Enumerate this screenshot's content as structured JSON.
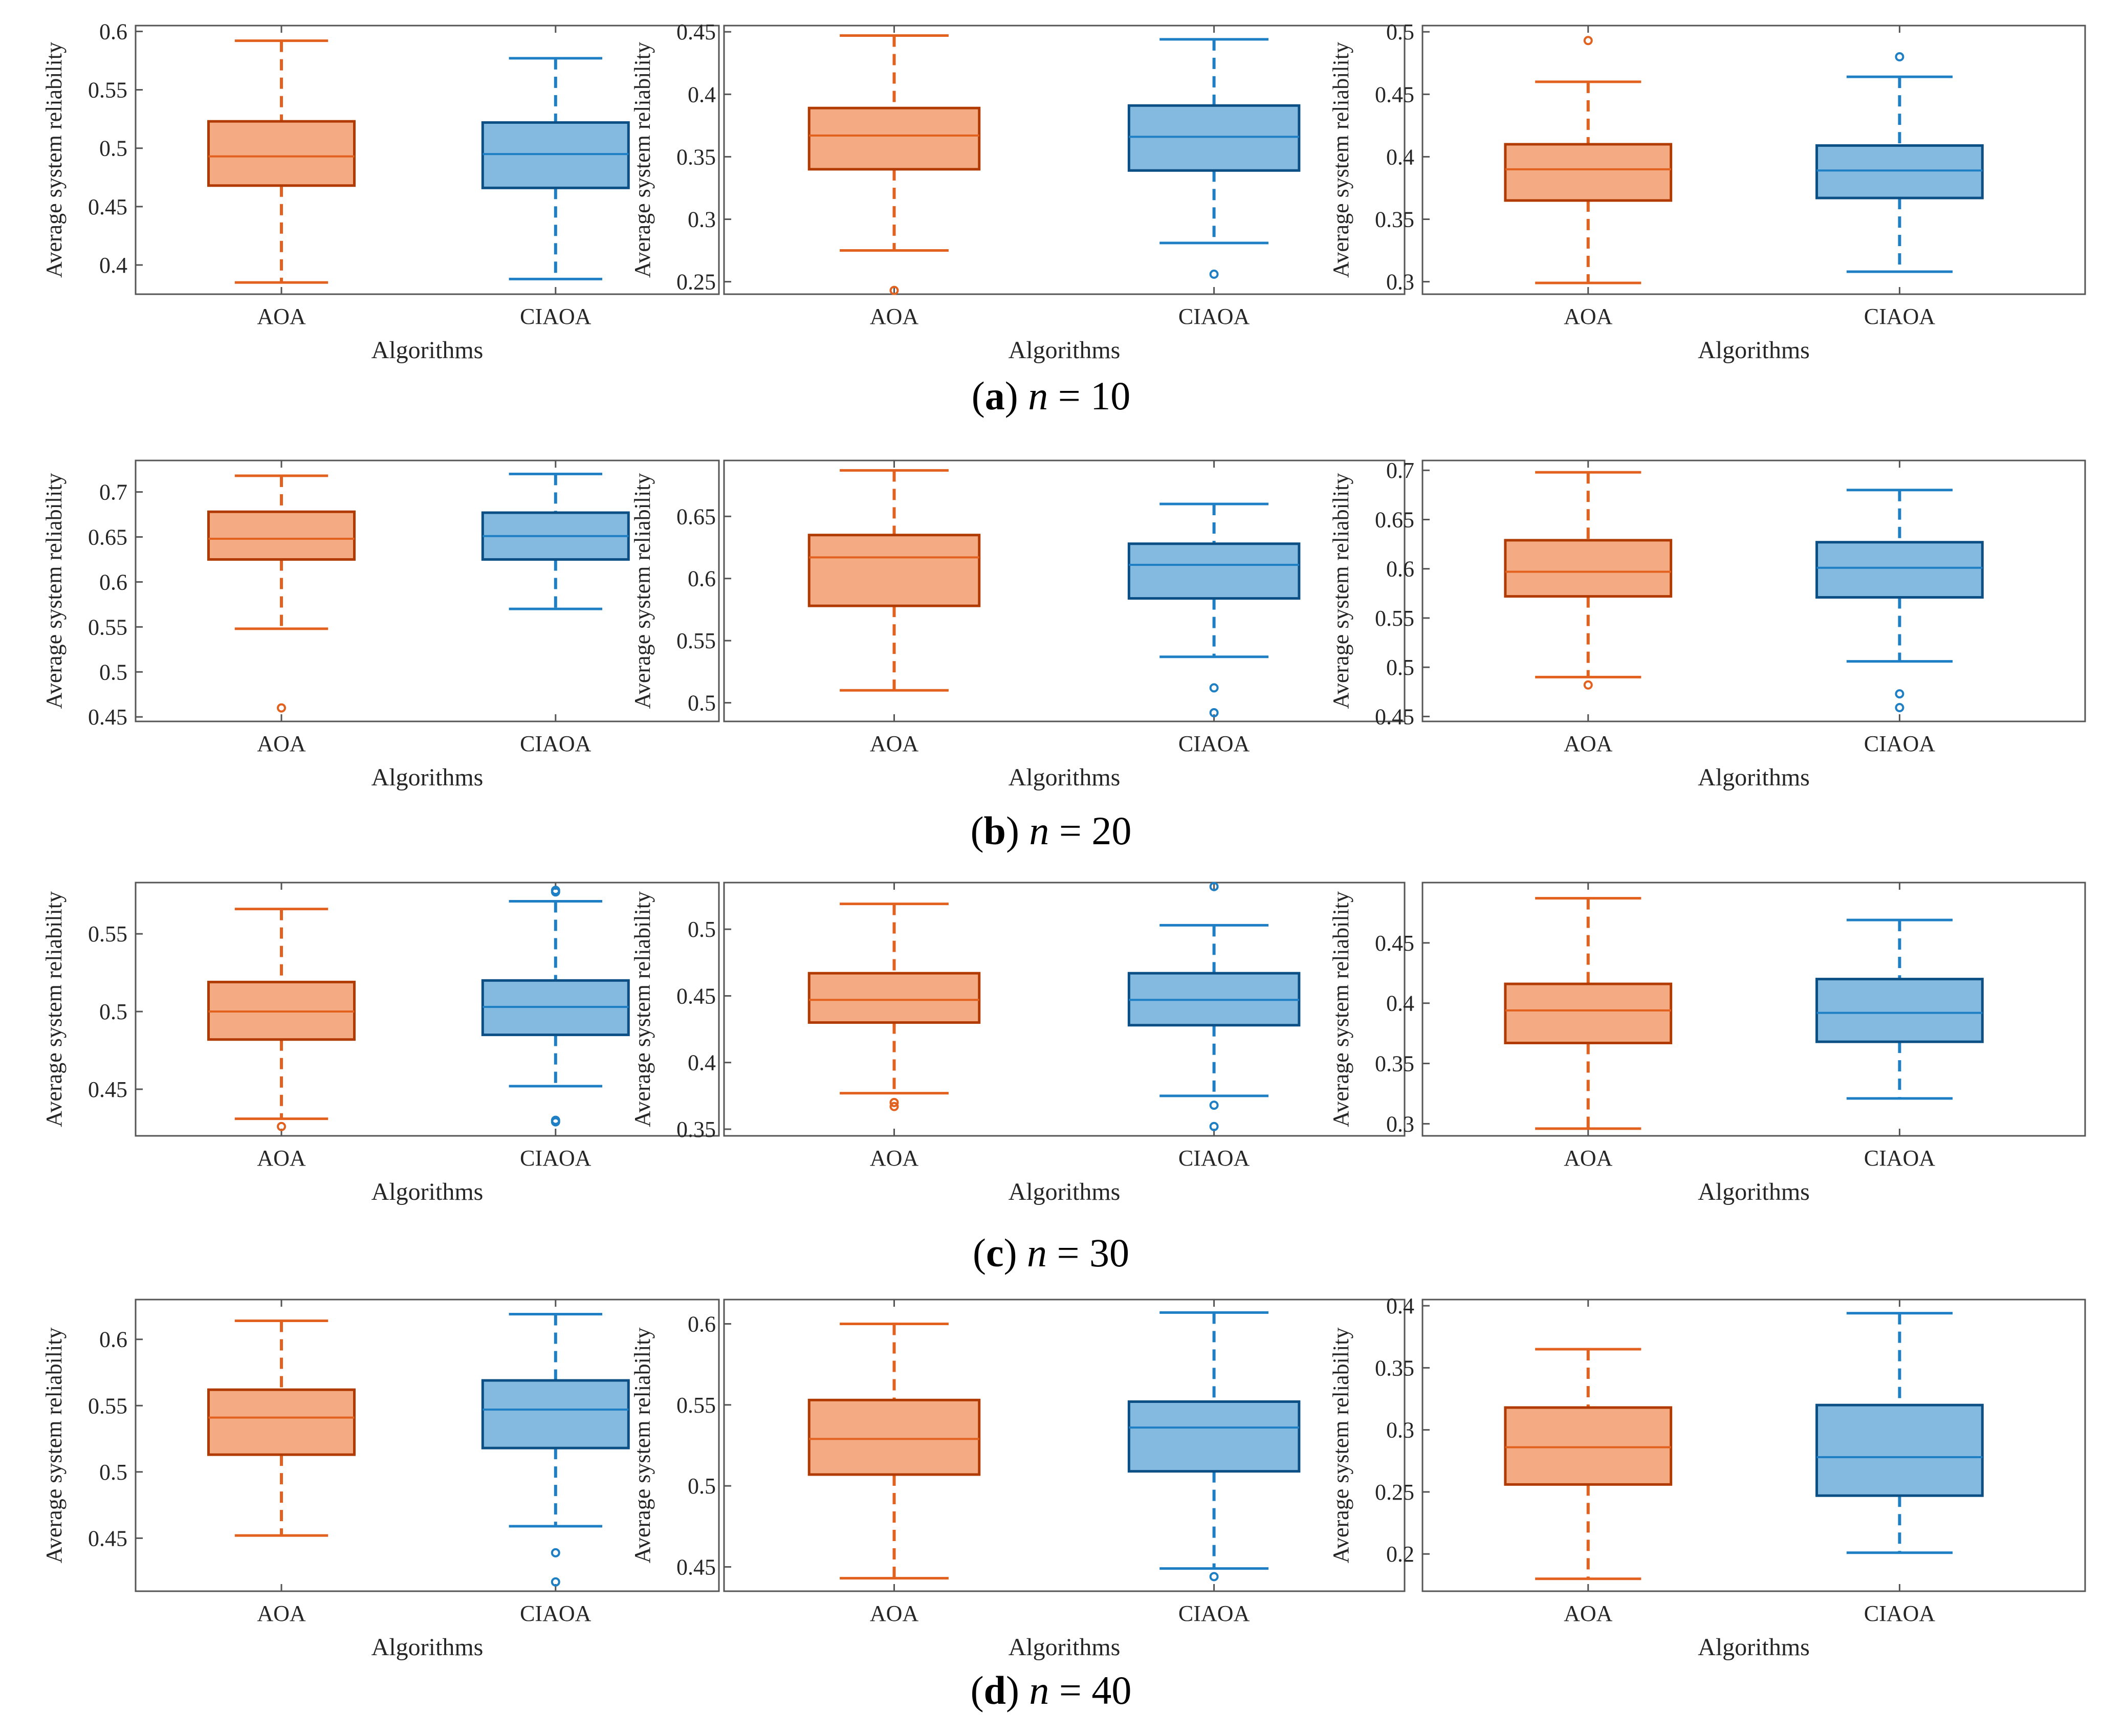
{
  "colors": {
    "aoa_fill": "#F4AB84",
    "aoa_edge": "#B03A00",
    "aoa_whisker": "#E2611E",
    "ciaoa_fill": "#84BAE0",
    "ciaoa_edge": "#0B4F85",
    "ciaoa_whisker": "#1F7FC4",
    "axis": "#555555"
  },
  "rows": [
    {
      "caption": {
        "letter": "a",
        "n_label": "n",
        "eq": " = 10"
      }
    },
    {
      "caption": {
        "letter": "b",
        "n_label": "n",
        "eq": " = 20"
      }
    },
    {
      "caption": {
        "letter": "c",
        "n_label": "n",
        "eq": " = 30"
      }
    },
    {
      "caption": {
        "letter": "d",
        "n_label": "n",
        "eq": " = 40"
      }
    }
  ],
  "chart_data": [
    {
      "type": "box",
      "row": 0,
      "col": 0,
      "xlabel": "Algorithms",
      "ylabel": "Average system reliability",
      "ylim": [
        0.375,
        0.605
      ],
      "yticks": [
        "0.4",
        "0.45",
        "0.5",
        "0.55",
        "0.6"
      ],
      "categories": [
        "AOA",
        "CIAOA"
      ],
      "series": [
        {
          "name": "AOA",
          "whisker_low": 0.385,
          "q1": 0.468,
          "median": 0.493,
          "q3": 0.523,
          "whisker_high": 0.592,
          "outliers": []
        },
        {
          "name": "CIAOA",
          "whisker_low": 0.388,
          "q1": 0.466,
          "median": 0.495,
          "q3": 0.522,
          "whisker_high": 0.577,
          "outliers": []
        }
      ]
    },
    {
      "type": "box",
      "row": 0,
      "col": 1,
      "xlabel": "Algorithms",
      "ylabel": "Average system reliability",
      "ylim": [
        0.24,
        0.455
      ],
      "yticks": [
        "0.25",
        "0.3",
        "0.35",
        "0.4",
        "0.45"
      ],
      "categories": [
        "AOA",
        "CIAOA"
      ],
      "series": [
        {
          "name": "AOA",
          "whisker_low": 0.275,
          "q1": 0.34,
          "median": 0.367,
          "q3": 0.389,
          "whisker_high": 0.447,
          "outliers": [
            0.243
          ]
        },
        {
          "name": "CIAOA",
          "whisker_low": 0.281,
          "q1": 0.339,
          "median": 0.366,
          "q3": 0.391,
          "whisker_high": 0.444,
          "outliers": [
            0.256
          ]
        }
      ]
    },
    {
      "type": "box",
      "row": 0,
      "col": 2,
      "xlabel": "Algorithms",
      "ylabel": "Average system reliability",
      "ylim": [
        0.29,
        0.505
      ],
      "yticks": [
        "0.3",
        "0.35",
        "0.4",
        "0.45",
        "0.5"
      ],
      "categories": [
        "AOA",
        "CIAOA"
      ],
      "series": [
        {
          "name": "AOA",
          "whisker_low": 0.299,
          "q1": 0.365,
          "median": 0.39,
          "q3": 0.41,
          "whisker_high": 0.46,
          "outliers": [
            0.493
          ]
        },
        {
          "name": "CIAOA",
          "whisker_low": 0.308,
          "q1": 0.367,
          "median": 0.389,
          "q3": 0.409,
          "whisker_high": 0.464,
          "outliers": [
            0.48
          ]
        }
      ]
    },
    {
      "type": "box",
      "row": 1,
      "col": 0,
      "xlabel": "Algorithms",
      "ylabel": "Average system reliability",
      "ylim": [
        0.445,
        0.735
      ],
      "yticks": [
        "0.45",
        "0.5",
        "0.55",
        "0.6",
        "0.65",
        "0.7"
      ],
      "categories": [
        "AOA",
        "CIAOA"
      ],
      "series": [
        {
          "name": "AOA",
          "whisker_low": 0.548,
          "q1": 0.625,
          "median": 0.648,
          "q3": 0.678,
          "whisker_high": 0.718,
          "outliers": [
            0.46
          ]
        },
        {
          "name": "CIAOA",
          "whisker_low": 0.57,
          "q1": 0.625,
          "median": 0.651,
          "q3": 0.677,
          "whisker_high": 0.72,
          "outliers": []
        }
      ]
    },
    {
      "type": "box",
      "row": 1,
      "col": 1,
      "xlabel": "Algorithms",
      "ylabel": "Average system reliability",
      "ylim": [
        0.485,
        0.695
      ],
      "yticks": [
        "0.5",
        "0.55",
        "0.6",
        "0.65"
      ],
      "categories": [
        "AOA",
        "CIAOA"
      ],
      "series": [
        {
          "name": "AOA",
          "whisker_low": 0.51,
          "q1": 0.578,
          "median": 0.617,
          "q3": 0.635,
          "whisker_high": 0.687,
          "outliers": []
        },
        {
          "name": "CIAOA",
          "whisker_low": 0.537,
          "q1": 0.584,
          "median": 0.611,
          "q3": 0.628,
          "whisker_high": 0.66,
          "outliers": [
            0.512,
            0.492
          ]
        }
      ]
    },
    {
      "type": "box",
      "row": 1,
      "col": 2,
      "xlabel": "Algorithms",
      "ylabel": "Average system reliability",
      "ylim": [
        0.445,
        0.71
      ],
      "yticks": [
        "0.45",
        "0.5",
        "0.55",
        "0.6",
        "0.65",
        "0.7"
      ],
      "categories": [
        "AOA",
        "CIAOA"
      ],
      "series": [
        {
          "name": "AOA",
          "whisker_low": 0.49,
          "q1": 0.572,
          "median": 0.597,
          "q3": 0.629,
          "whisker_high": 0.698,
          "outliers": [
            0.482
          ]
        },
        {
          "name": "CIAOA",
          "whisker_low": 0.506,
          "q1": 0.571,
          "median": 0.601,
          "q3": 0.627,
          "whisker_high": 0.68,
          "outliers": [
            0.473,
            0.459
          ]
        }
      ]
    },
    {
      "type": "box",
      "row": 2,
      "col": 0,
      "xlabel": "Algorithms",
      "ylabel": "Average system reliability",
      "ylim": [
        0.42,
        0.583
      ],
      "yticks": [
        "0.45",
        "0.5",
        "0.55"
      ],
      "categories": [
        "AOA",
        "CIAOA"
      ],
      "series": [
        {
          "name": "AOA",
          "whisker_low": 0.431,
          "q1": 0.482,
          "median": 0.5,
          "q3": 0.519,
          "whisker_high": 0.566,
          "outliers": [
            0.426
          ]
        },
        {
          "name": "CIAOA",
          "whisker_low": 0.452,
          "q1": 0.485,
          "median": 0.503,
          "q3": 0.52,
          "whisker_high": 0.571,
          "outliers": [
            0.578,
            0.577,
            0.43,
            0.429
          ]
        }
      ]
    },
    {
      "type": "box",
      "row": 2,
      "col": 1,
      "xlabel": "Algorithms",
      "ylabel": "Average system reliability",
      "ylim": [
        0.345,
        0.535
      ],
      "yticks": [
        "0.35",
        "0.4",
        "0.45",
        "0.5"
      ],
      "categories": [
        "AOA",
        "CIAOA"
      ],
      "series": [
        {
          "name": "AOA",
          "whisker_low": 0.377,
          "q1": 0.43,
          "median": 0.447,
          "q3": 0.467,
          "whisker_high": 0.519,
          "outliers": [
            0.37,
            0.367
          ]
        },
        {
          "name": "CIAOA",
          "whisker_low": 0.375,
          "q1": 0.428,
          "median": 0.447,
          "q3": 0.467,
          "whisker_high": 0.503,
          "outliers": [
            0.532,
            0.368,
            0.352
          ]
        }
      ]
    },
    {
      "type": "box",
      "row": 2,
      "col": 2,
      "xlabel": "Algorithms",
      "ylabel": "Average system reliability",
      "ylim": [
        0.29,
        0.5
      ],
      "yticks": [
        "0.3",
        "0.35",
        "0.4",
        "0.45"
      ],
      "categories": [
        "AOA",
        "CIAOA"
      ],
      "series": [
        {
          "name": "AOA",
          "whisker_low": 0.296,
          "q1": 0.367,
          "median": 0.394,
          "q3": 0.416,
          "whisker_high": 0.487,
          "outliers": []
        },
        {
          "name": "CIAOA",
          "whisker_low": 0.321,
          "q1": 0.368,
          "median": 0.392,
          "q3": 0.42,
          "whisker_high": 0.469,
          "outliers": []
        }
      ]
    },
    {
      "type": "box",
      "row": 3,
      "col": 0,
      "xlabel": "Algorithms",
      "ylabel": "Average system reliability",
      "ylim": [
        0.41,
        0.63
      ],
      "yticks": [
        "0.45",
        "0.5",
        "0.55",
        "0.6"
      ],
      "categories": [
        "AOA",
        "CIAOA"
      ],
      "series": [
        {
          "name": "AOA",
          "whisker_low": 0.452,
          "q1": 0.513,
          "median": 0.541,
          "q3": 0.562,
          "whisker_high": 0.614,
          "outliers": []
        },
        {
          "name": "CIAOA",
          "whisker_low": 0.459,
          "q1": 0.518,
          "median": 0.547,
          "q3": 0.569,
          "whisker_high": 0.619,
          "outliers": [
            0.439,
            0.417
          ]
        }
      ]
    },
    {
      "type": "box",
      "row": 3,
      "col": 1,
      "xlabel": "Algorithms",
      "ylabel": "Average system reliability",
      "ylim": [
        0.435,
        0.615
      ],
      "yticks": [
        "0.45",
        "0.5",
        "0.55",
        "0.6"
      ],
      "categories": [
        "AOA",
        "CIAOA"
      ],
      "series": [
        {
          "name": "AOA",
          "whisker_low": 0.443,
          "q1": 0.507,
          "median": 0.529,
          "q3": 0.553,
          "whisker_high": 0.6,
          "outliers": []
        },
        {
          "name": "CIAOA",
          "whisker_low": 0.449,
          "q1": 0.509,
          "median": 0.536,
          "q3": 0.552,
          "whisker_high": 0.607,
          "outliers": [
            0.444
          ]
        }
      ]
    },
    {
      "type": "box",
      "row": 3,
      "col": 2,
      "xlabel": "Algorithms",
      "ylabel": "Average system reliability",
      "ylim": [
        0.17,
        0.405
      ],
      "yticks": [
        "0.2",
        "0.25",
        "0.3",
        "0.35",
        "0.4"
      ],
      "categories": [
        "AOA",
        "CIAOA"
      ],
      "series": [
        {
          "name": "AOA",
          "whisker_low": 0.18,
          "q1": 0.256,
          "median": 0.286,
          "q3": 0.318,
          "whisker_high": 0.365,
          "outliers": []
        },
        {
          "name": "CIAOA",
          "whisker_low": 0.201,
          "q1": 0.247,
          "median": 0.278,
          "q3": 0.32,
          "whisker_high": 0.394,
          "outliers": []
        }
      ]
    }
  ]
}
